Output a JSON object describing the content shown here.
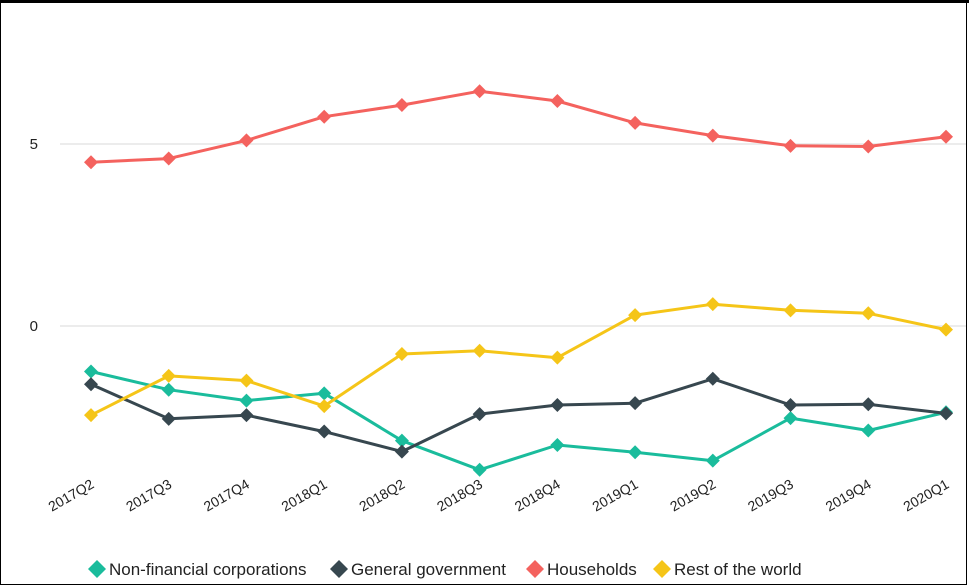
{
  "chart_data": {
    "type": "line",
    "title": "",
    "xlabel": "",
    "ylabel": "",
    "categories": [
      "2017Q2",
      "2017Q3",
      "2017Q4",
      "2018Q1",
      "2018Q2",
      "2018Q3",
      "2018Q4",
      "2019Q1",
      "2019Q2",
      "2019Q3",
      "2019Q4",
      "2020Q1"
    ],
    "y_ticks": [
      0,
      5
    ],
    "ylim": [
      -4.2,
      7.4
    ],
    "grid": true,
    "legend_position": "bottom",
    "series": [
      {
        "name": "Non-financial corporations",
        "color": "#1ABC9C",
        "values": [
          -1.25,
          -1.75,
          -2.05,
          -1.85,
          -3.15,
          -3.95,
          -3.27,
          -3.47,
          -3.7,
          -2.53,
          -2.87,
          -2.37
        ]
      },
      {
        "name": "General government",
        "color": "#37474F",
        "values": [
          -1.6,
          -2.55,
          -2.45,
          -2.9,
          -3.45,
          -2.42,
          -2.17,
          -2.12,
          -1.45,
          -2.17,
          -2.15,
          -2.4
        ]
      },
      {
        "name": "Households",
        "color": "#F4625E",
        "values": [
          4.5,
          4.6,
          5.1,
          5.75,
          6.07,
          6.45,
          6.18,
          5.58,
          5.23,
          4.95,
          4.93,
          5.2
        ]
      },
      {
        "name": "Rest of the world",
        "color": "#F5C518",
        "values": [
          -2.45,
          -1.37,
          -1.5,
          -2.2,
          -0.77,
          -0.68,
          -0.87,
          0.3,
          0.6,
          0.43,
          0.35,
          -0.1
        ]
      }
    ]
  }
}
